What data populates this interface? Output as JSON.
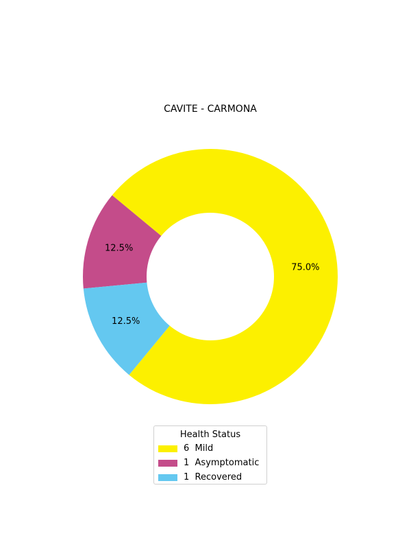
{
  "chart_data": {
    "type": "pie",
    "title": "CAVITE - CARMONA",
    "donut": true,
    "slices": [
      {
        "label": "Mild",
        "count": 6,
        "value": 75.0,
        "pct_label": "75.0%",
        "color": "#FCF000"
      },
      {
        "label": "Asymptomatic",
        "count": 1,
        "value": 12.5,
        "pct_label": "12.5%",
        "color": "#C44C8A"
      },
      {
        "label": "Recovered",
        "count": 1,
        "value": 12.5,
        "pct_label": "12.5%",
        "color": "#64C8F0"
      }
    ],
    "legend": {
      "title": "Health Status",
      "placement": "bottom-center",
      "entries": [
        "6  Mild",
        "1  Asymptomatic",
        "1  Recovered"
      ]
    }
  }
}
